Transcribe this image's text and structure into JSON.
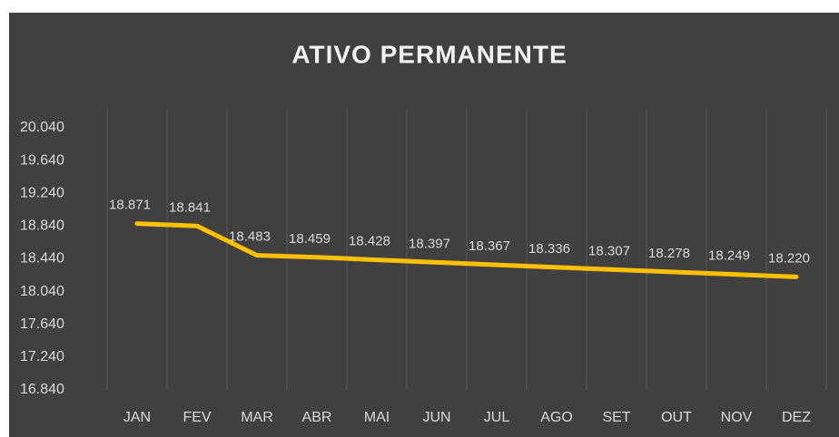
{
  "chart_data": {
    "type": "line",
    "title": "ATIVO PERMANENTE",
    "categories": [
      "JAN",
      "FEV",
      "MAR",
      "ABR",
      "MAI",
      "JUN",
      "JUL",
      "AGO",
      "SET",
      "OUT",
      "NOV",
      "DEZ"
    ],
    "series": [
      {
        "name": "ATIVO PERMANENTE",
        "color": "#ffc000",
        "values": [
          18871,
          18841,
          18483,
          18459,
          18428,
          18397,
          18367,
          18336,
          18307,
          18278,
          18249,
          18220
        ],
        "value_labels": [
          "18.871",
          "18.841",
          "18.483",
          "18.459",
          "18.428",
          "18.397",
          "18.367",
          "18.336",
          "18.307",
          "18.278",
          "18.249",
          "18.220"
        ]
      }
    ],
    "ylim": [
      16840,
      20040
    ],
    "yticks": [
      {
        "value": 16840,
        "label": "16.840"
      },
      {
        "value": 17240,
        "label": "17.240"
      },
      {
        "value": 17640,
        "label": "17.640"
      },
      {
        "value": 18040,
        "label": "18.040"
      },
      {
        "value": 18440,
        "label": "18.440"
      },
      {
        "value": 18840,
        "label": "18.840"
      },
      {
        "value": 19240,
        "label": "19.240"
      },
      {
        "value": 19640,
        "label": "19.640"
      },
      {
        "value": 20040,
        "label": "20.040"
      }
    ],
    "grid": false
  }
}
